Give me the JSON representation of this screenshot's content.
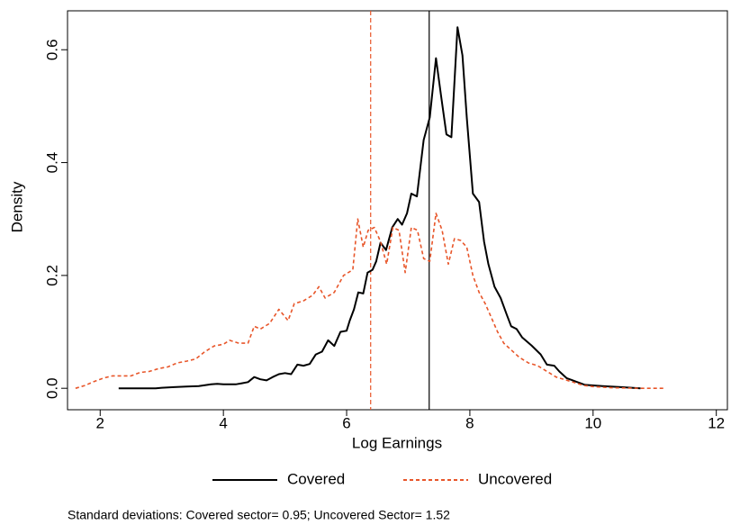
{
  "chart_data": {
    "type": "line",
    "x_label": "Log Earnings",
    "y_label": "Density",
    "note": "Standard deviations: Covered sector= 0.95; Uncovered Sector= 1.52",
    "xlim": [
      1.47,
      12.18
    ],
    "ylim": [
      -0.038,
      0.669
    ],
    "xticks": [
      2,
      4,
      6,
      8,
      10,
      12
    ],
    "yticks": [
      {
        "value": 0,
        "label": "0.0"
      },
      0.2,
      0.4,
      0.6
    ],
    "series": [
      {
        "name": "Covered",
        "color": "#000000",
        "dashed": false,
        "x": [
          2.3,
          2.5,
          2.7,
          2.9,
          3.0,
          3.2,
          3.4,
          3.6,
          3.8,
          3.9,
          4.0,
          4.2,
          4.3,
          4.4,
          4.5,
          4.6,
          4.7,
          4.8,
          4.9,
          5.0,
          5.1,
          5.2,
          5.3,
          5.4,
          5.5,
          5.6,
          5.7,
          5.8,
          5.9,
          6.0,
          6.05,
          6.12,
          6.19,
          6.27,
          6.34,
          6.42,
          6.48,
          6.55,
          6.64,
          6.74,
          6.83,
          6.9,
          6.98,
          7.05,
          7.14,
          7.25,
          7.35,
          7.45,
          7.53,
          7.62,
          7.7,
          7.8,
          7.88,
          7.95,
          8.05,
          8.15,
          8.23,
          8.3,
          8.4,
          8.5,
          8.6,
          8.67,
          8.76,
          8.85,
          9.0,
          9.15,
          9.25,
          9.37,
          9.45,
          9.57,
          9.72,
          9.87,
          10.15,
          10.45,
          10.77
        ],
        "values": [
          0,
          0,
          0,
          0,
          0.001,
          0.002,
          0.003,
          0.004,
          0.007,
          0.008,
          0.007,
          0.007,
          0.009,
          0.011,
          0.02,
          0.016,
          0.014,
          0.02,
          0.025,
          0.027,
          0.025,
          0.042,
          0.04,
          0.043,
          0.06,
          0.065,
          0.085,
          0.075,
          0.1,
          0.102,
          0.12,
          0.14,
          0.17,
          0.168,
          0.205,
          0.21,
          0.225,
          0.258,
          0.245,
          0.285,
          0.3,
          0.29,
          0.31,
          0.345,
          0.34,
          0.44,
          0.48,
          0.585,
          0.52,
          0.45,
          0.445,
          0.64,
          0.59,
          0.48,
          0.345,
          0.33,
          0.26,
          0.22,
          0.18,
          0.16,
          0.13,
          0.11,
          0.105,
          0.09,
          0.076,
          0.06,
          0.042,
          0.04,
          0.03,
          0.018,
          0.012,
          0.006,
          0.004,
          0.002,
          0
        ]
      },
      {
        "name": "Uncovered",
        "color": "#e8562a",
        "dashed": true,
        "x": [
          1.6,
          1.75,
          1.9,
          2.05,
          2.2,
          2.35,
          2.5,
          2.65,
          2.8,
          2.95,
          3.1,
          3.25,
          3.4,
          3.55,
          3.7,
          3.85,
          4.0,
          4.1,
          4.25,
          4.4,
          4.5,
          4.6,
          4.75,
          4.9,
          5.05,
          5.15,
          5.3,
          5.45,
          5.55,
          5.65,
          5.8,
          5.95,
          6.1,
          6.18,
          6.27,
          6.35,
          6.45,
          6.55,
          6.65,
          6.75,
          6.85,
          6.95,
          7.05,
          7.15,
          7.25,
          7.35,
          7.45,
          7.55,
          7.65,
          7.75,
          7.85,
          7.95,
          8.05,
          8.15,
          8.25,
          8.35,
          8.45,
          8.55,
          8.65,
          8.8,
          8.95,
          9.1,
          9.25,
          9.4,
          9.55,
          9.7,
          9.85,
          10.0,
          10.3,
          10.8,
          11.18
        ],
        "values": [
          0,
          0.005,
          0.012,
          0.018,
          0.022,
          0.022,
          0.022,
          0.028,
          0.03,
          0.035,
          0.038,
          0.045,
          0.048,
          0.052,
          0.065,
          0.075,
          0.078,
          0.085,
          0.08,
          0.08,
          0.11,
          0.105,
          0.115,
          0.14,
          0.12,
          0.15,
          0.155,
          0.165,
          0.18,
          0.16,
          0.17,
          0.2,
          0.21,
          0.3,
          0.25,
          0.28,
          0.285,
          0.26,
          0.22,
          0.285,
          0.28,
          0.205,
          0.285,
          0.28,
          0.23,
          0.225,
          0.31,
          0.28,
          0.22,
          0.265,
          0.262,
          0.25,
          0.2,
          0.17,
          0.15,
          0.125,
          0.1,
          0.08,
          0.07,
          0.055,
          0.045,
          0.04,
          0.03,
          0.02,
          0.015,
          0.01,
          0.005,
          0.003,
          0.001,
          0,
          0
        ]
      }
    ],
    "reference_lines": [
      {
        "x": 7.34,
        "color": "#000000",
        "dashed": false
      },
      {
        "x": 6.39,
        "color": "#e8562a",
        "dashed": true
      }
    ]
  }
}
